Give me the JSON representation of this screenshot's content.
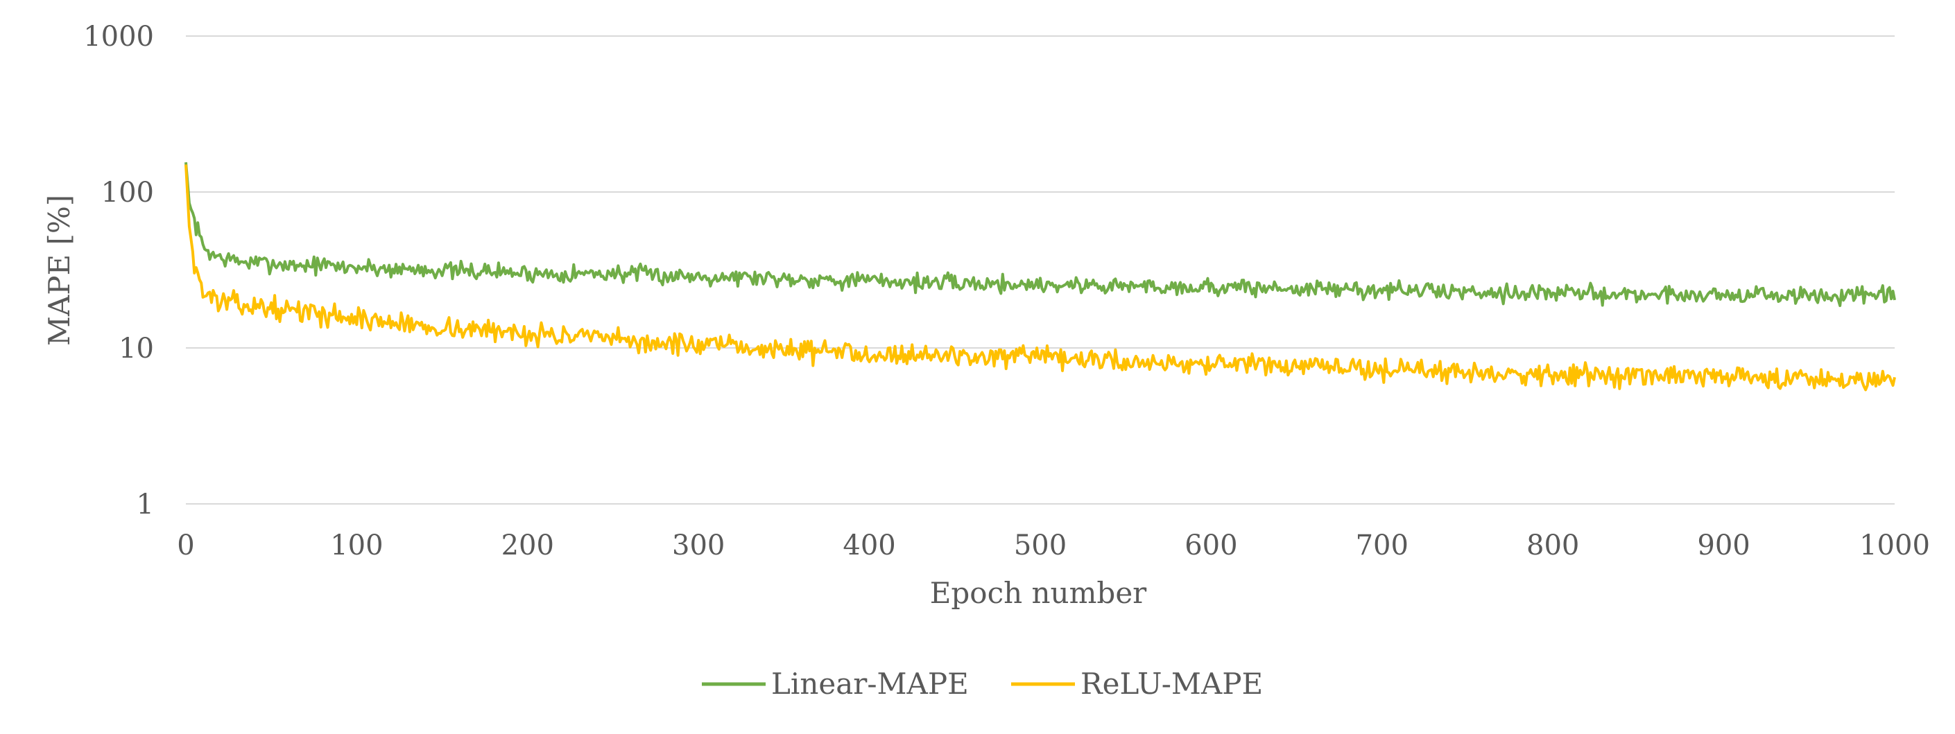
{
  "chart_data": {
    "type": "line",
    "title": "",
    "xlabel": "Epoch number",
    "ylabel": "MAPE [%]",
    "xlim": [
      0,
      1000
    ],
    "ylim": [
      1,
      1000
    ],
    "yscale": "log",
    "grid": "horizontal",
    "legend_position": "bottom",
    "x_ticks": [
      0,
      100,
      200,
      300,
      400,
      500,
      600,
      700,
      800,
      900,
      1000
    ],
    "x_tick_labels": [
      "0",
      "100",
      "200",
      "300",
      "400",
      "500",
      "600",
      "700",
      "800",
      "900",
      "1000"
    ],
    "y_ticks": [
      1,
      10,
      100,
      1000
    ],
    "y_tick_labels": [
      "1",
      "10",
      "100",
      "1000"
    ],
    "series": [
      {
        "name": "Linear-MAPE",
        "color": "#70AD47",
        "x": [
          0,
          2,
          5,
          10,
          15,
          20,
          25,
          30,
          40,
          50,
          60,
          70,
          80,
          90,
          100,
          120,
          140,
          160,
          180,
          200,
          220,
          240,
          260,
          280,
          300,
          350,
          400,
          450,
          500,
          550,
          600,
          650,
          700,
          750,
          800,
          850,
          900,
          950,
          1000
        ],
        "values": [
          155,
          85,
          65,
          45,
          40,
          38,
          37,
          36,
          35,
          35,
          34,
          34,
          34,
          33,
          33,
          32,
          32,
          31,
          31,
          30,
          30,
          30,
          30,
          29,
          29,
          28,
          27,
          26,
          25.5,
          25,
          24.5,
          24,
          23.5,
          23,
          22.5,
          22,
          22,
          21.5,
          21.5
        ],
        "noise": 0.09,
        "seed": 7
      },
      {
        "name": "ReLU-MAPE",
        "color": "#FFC000",
        "x": [
          0,
          2,
          5,
          10,
          15,
          20,
          25,
          30,
          40,
          50,
          60,
          70,
          80,
          90,
          100,
          120,
          140,
          160,
          180,
          200,
          220,
          240,
          260,
          280,
          300,
          350,
          400,
          450,
          500,
          550,
          600,
          650,
          700,
          750,
          800,
          850,
          900,
          950,
          1000
        ],
        "values": [
          150,
          60,
          35,
          23,
          21,
          20,
          19.5,
          19,
          18.5,
          18,
          17.5,
          17,
          16.5,
          16,
          15.5,
          14.5,
          13.8,
          13.3,
          12.8,
          12.5,
          12,
          11.5,
          11,
          10.7,
          10.4,
          9.8,
          9.3,
          8.9,
          8.6,
          8.2,
          7.9,
          7.6,
          7.3,
          7.0,
          6.8,
          6.6,
          6.5,
          6.4,
          6.3
        ],
        "noise": 0.11,
        "seed": 13
      }
    ]
  }
}
